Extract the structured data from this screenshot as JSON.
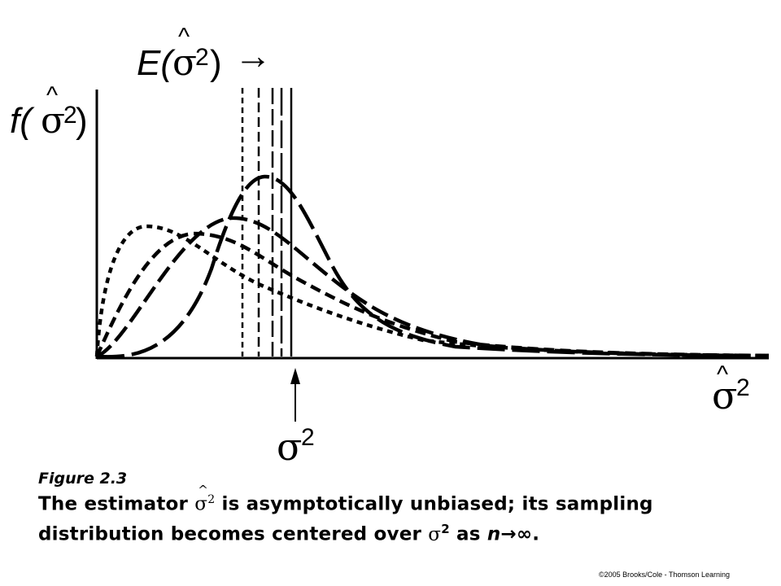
{
  "figure": {
    "title_parts": {
      "prefix": "E(",
      "symbol": "σ",
      "exp": "2",
      "suffix": ")",
      "arrow": "→"
    },
    "y_label_parts": {
      "prefix": "f(",
      "symbol": "σ",
      "exp": "2",
      "suffix": ")"
    },
    "x_label_parts": {
      "symbol": "σ",
      "exp": "2"
    },
    "true_value_parts": {
      "symbol": "σ",
      "exp": "2"
    },
    "hat": "^"
  },
  "caption": {
    "figure_label": "Figure 2.3",
    "line1_before": "The estimator ",
    "line1_symbol": "σ",
    "line1_exp": "2",
    "line1_after": " is asymptotically unbiased; its sampling",
    "line2_before": "distribution becomes centered over ",
    "line2_symbol": "σ",
    "line2_exp": "2",
    "line2_middle": " as ",
    "line2_n": "n",
    "line2_arrow": "→",
    "line2_inf": "∞."
  },
  "copyright": "©2005 Brooks/Cole - Thomson Learning"
}
